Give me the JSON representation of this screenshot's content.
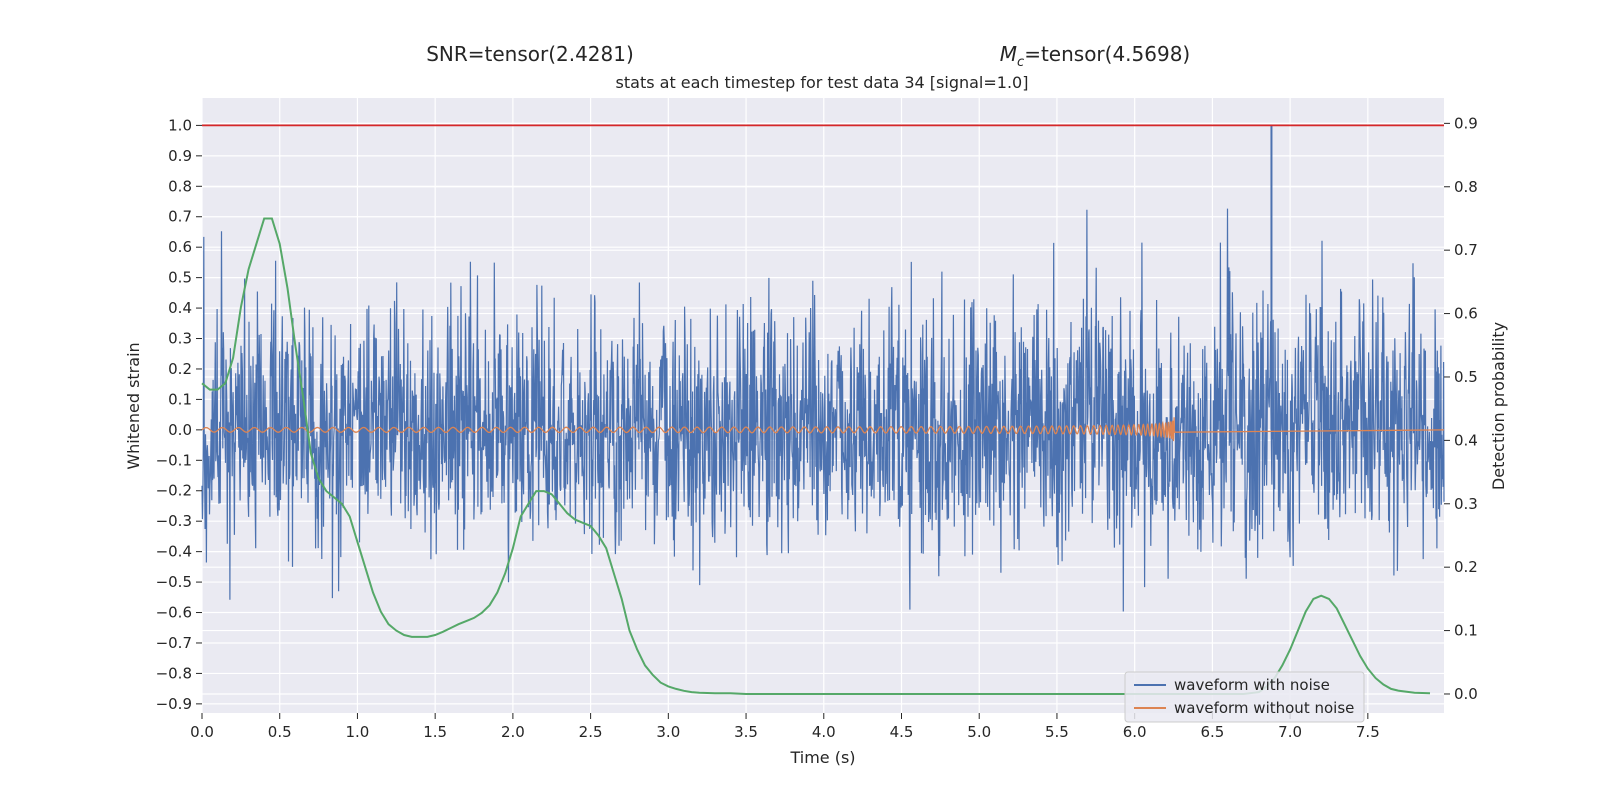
{
  "chart_data": {
    "type": "line",
    "suptitle_left": "SNR=tensor(2.4281)",
    "suptitle_right_symbol": "M",
    "suptitle_right_subscript": "c",
    "suptitle_right_rest": "=tensor(4.5698)",
    "title": "stats at each timestep for test data 34 [signal=1.0]",
    "xlabel": "Time (s)",
    "ylabel_left": "Whitened strain",
    "ylabel_right": "Detection probability",
    "xlim": [
      0,
      7.99
    ],
    "ylim_left": [
      -0.93,
      1.09
    ],
    "ylim_right": [
      -0.03,
      0.94
    ],
    "x_ticks": [
      "0.0",
      "0.5",
      "1.0",
      "1.5",
      "2.0",
      "2.5",
      "3.0",
      "3.5",
      "4.0",
      "4.5",
      "5.0",
      "5.5",
      "6.0",
      "6.5",
      "7.0",
      "7.5"
    ],
    "y_ticks_left": [
      "1.0",
      "0.9",
      "0.8",
      "0.7",
      "0.6",
      "0.5",
      "0.4",
      "0.3",
      "0.2",
      "0.1",
      "0.0",
      "−0.1",
      "−0.2",
      "−0.3",
      "−0.4",
      "−0.5",
      "−0.6",
      "−0.7",
      "−0.8",
      "−0.9"
    ],
    "y_ticks_right": [
      "0.9",
      "0.8",
      "0.7",
      "0.6",
      "0.5",
      "0.4",
      "0.3",
      "0.2",
      "0.1",
      "0.0"
    ],
    "threshold_line": {
      "y": 1.0,
      "color": "#d62728"
    },
    "grid": true,
    "legend_placement": "lower-right",
    "series": [
      {
        "name": "waveform with noise",
        "color": "#4c72b0",
        "axis": "left"
      },
      {
        "name": "waveform without noise",
        "color": "#dd8452",
        "axis": "left"
      },
      {
        "name": "",
        "color": "#55a868",
        "axis": "right",
        "x": [
          0.0,
          0.05,
          0.1,
          0.15,
          0.2,
          0.25,
          0.3,
          0.35,
          0.4,
          0.45,
          0.5,
          0.55,
          0.6,
          0.65,
          0.7,
          0.75,
          0.8,
          0.85,
          0.9,
          0.95,
          1.0,
          1.05,
          1.1,
          1.15,
          1.2,
          1.25,
          1.3,
          1.35,
          1.4,
          1.45,
          1.5,
          1.55,
          1.6,
          1.65,
          1.7,
          1.75,
          1.8,
          1.85,
          1.9,
          1.95,
          2.0,
          2.05,
          2.1,
          2.15,
          2.2,
          2.25,
          2.3,
          2.35,
          2.4,
          2.45,
          2.5,
          2.55,
          2.6,
          2.65,
          2.7,
          2.75,
          2.8,
          2.85,
          2.9,
          2.95,
          3.0,
          3.05,
          3.1,
          3.15,
          3.2,
          3.3,
          3.4,
          3.5,
          3.7,
          4.0,
          5.0,
          6.0,
          6.5,
          6.7,
          6.8,
          6.85,
          6.9,
          6.95,
          7.0,
          7.05,
          7.1,
          7.15,
          7.2,
          7.25,
          7.3,
          7.35,
          7.4,
          7.45,
          7.5,
          7.55,
          7.6,
          7.65,
          7.7,
          7.8,
          7.9
        ],
        "y": [
          0.49,
          0.48,
          0.48,
          0.49,
          0.53,
          0.61,
          0.67,
          0.71,
          0.75,
          0.75,
          0.71,
          0.64,
          0.55,
          0.47,
          0.38,
          0.34,
          0.32,
          0.31,
          0.3,
          0.28,
          0.24,
          0.2,
          0.16,
          0.13,
          0.11,
          0.1,
          0.093,
          0.09,
          0.09,
          0.09,
          0.093,
          0.098,
          0.104,
          0.11,
          0.115,
          0.12,
          0.128,
          0.14,
          0.16,
          0.19,
          0.23,
          0.28,
          0.3,
          0.32,
          0.32,
          0.315,
          0.3,
          0.285,
          0.275,
          0.27,
          0.265,
          0.25,
          0.23,
          0.19,
          0.15,
          0.1,
          0.07,
          0.045,
          0.03,
          0.018,
          0.012,
          0.008,
          0.005,
          0.003,
          0.002,
          0.001,
          0.001,
          0.0,
          0.0,
          0.0,
          0.0,
          0.0,
          0.0,
          0.0,
          0.003,
          0.012,
          0.025,
          0.045,
          0.07,
          0.1,
          0.13,
          0.15,
          0.155,
          0.15,
          0.135,
          0.11,
          0.085,
          0.06,
          0.04,
          0.025,
          0.015,
          0.008,
          0.005,
          0.002,
          0.001
        ]
      }
    ]
  }
}
